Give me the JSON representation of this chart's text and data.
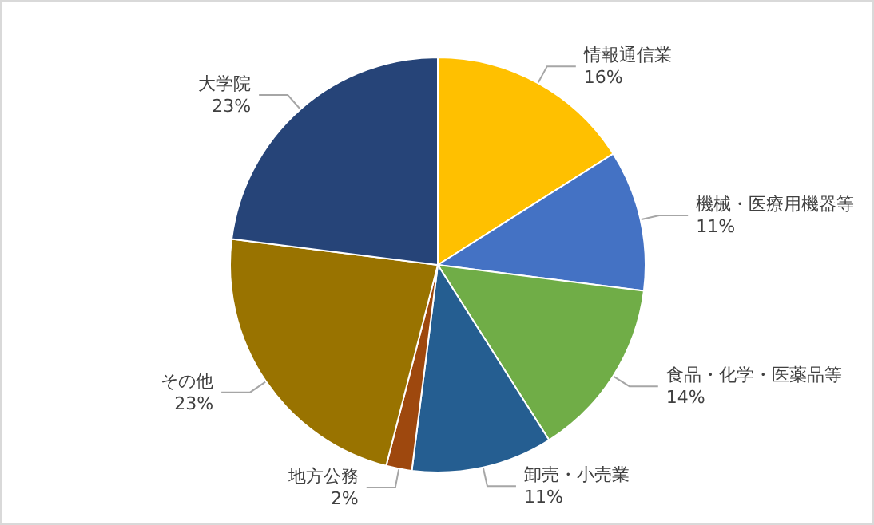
{
  "chart_data": {
    "type": "pie",
    "categories": [
      "情報通信業",
      "機械・医療用機器等",
      "食品・化学・医薬品等",
      "卸売・小売業",
      "地方公務",
      "その他",
      "大学院"
    ],
    "values": [
      16,
      11,
      14,
      11,
      2,
      23,
      23
    ],
    "value_labels": [
      "16%",
      "11%",
      "14%",
      "11%",
      "2%",
      "23%",
      "23%"
    ],
    "colors": [
      "#ffc000",
      "#4472c4",
      "#70ad47",
      "#255e91",
      "#9e480e",
      "#997300",
      "#264478"
    ],
    "legend": false
  }
}
